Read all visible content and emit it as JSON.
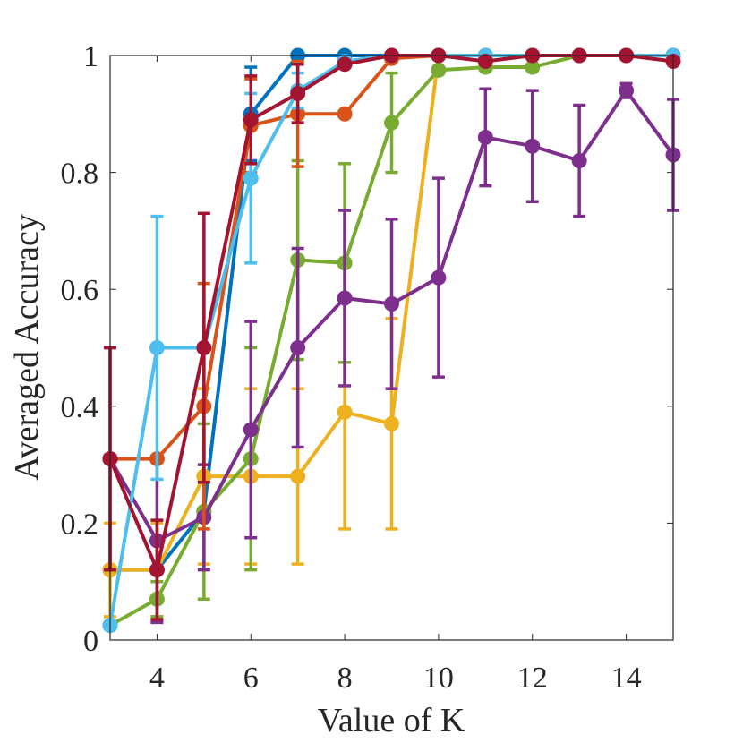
{
  "chart_data": {
    "type": "line",
    "title": "",
    "xlabel": "Value of K",
    "ylabel": "Averaged Accuracy",
    "xlim": [
      3,
      15
    ],
    "ylim": [
      0,
      1
    ],
    "x": [
      3,
      4,
      5,
      6,
      7,
      8,
      9,
      10,
      11,
      12,
      13,
      14,
      15
    ],
    "xticks": [
      4,
      6,
      8,
      10,
      12,
      14
    ],
    "yticks": [
      0,
      0.2,
      0.4,
      0.6,
      0.8,
      1
    ],
    "ytick_labels": [
      "0",
      "0.2",
      "0.4",
      "0.6",
      "0.8",
      "1"
    ],
    "grid": false,
    "legend": false,
    "series": [
      {
        "color": "#0072BD",
        "values": [
          0.12,
          0.12,
          0.22,
          0.9,
          1.0,
          1.0,
          1.0,
          1.0,
          1.0,
          1.0,
          1.0,
          1.0,
          1.0
        ],
        "error": [
          0,
          0,
          0,
          0.08,
          0,
          0,
          0,
          0,
          0,
          0,
          0,
          0,
          0
        ]
      },
      {
        "color": "#EDB120",
        "values": [
          0.12,
          0.12,
          0.28,
          0.28,
          0.28,
          0.39,
          0.37,
          1.0,
          1.0,
          1.0,
          1.0,
          1.0,
          1.0
        ],
        "error": [
          0.08,
          0.08,
          0.15,
          0.15,
          0.15,
          0.2,
          0.18,
          0,
          0,
          0,
          0,
          0,
          0
        ]
      },
      {
        "color": "#77AC30",
        "values": [
          0.025,
          0.07,
          0.22,
          0.31,
          0.65,
          0.645,
          0.885,
          0.975,
          0.98,
          0.98,
          1.0,
          1.0,
          1.0
        ],
        "error": [
          0,
          0.03,
          0.15,
          0.19,
          0.17,
          0.17,
          0.085,
          0,
          0,
          0,
          0,
          0,
          0
        ]
      },
      {
        "color": "#7E2F8E",
        "values": [
          0.31,
          0.17,
          0.21,
          0.36,
          0.5,
          0.585,
          0.575,
          0.62,
          0.86,
          0.845,
          0.82,
          0.94,
          0.83
        ],
        "error": [
          0.19,
          0.14,
          0.09,
          0.185,
          0.17,
          0.15,
          0.145,
          0.17,
          0.083,
          0.095,
          0.095,
          0.012,
          0.095
        ]
      },
      {
        "color": "#D95319",
        "values": [
          0.31,
          0.31,
          0.4,
          0.88,
          0.9,
          0.9,
          0.995,
          1.0,
          1.0,
          1.0,
          1.0,
          1.0,
          1.0
        ],
        "error": [
          0,
          0,
          0.21,
          0.08,
          0.09,
          0,
          0,
          0,
          0,
          0,
          0,
          0,
          0
        ]
      },
      {
        "color": "#4DBEEE",
        "values": [
          0.025,
          0.5,
          0.5,
          0.79,
          0.94,
          0.99,
          1.0,
          1.0,
          1.0,
          1.0,
          1.0,
          1.0,
          1.0
        ],
        "error": [
          0,
          0.225,
          0,
          0.145,
          0.03,
          0,
          0,
          0,
          0,
          0,
          0,
          0,
          0
        ]
      },
      {
        "color": "#A2142F",
        "values": [
          0.31,
          0.12,
          0.5,
          0.89,
          0.935,
          0.985,
          1.0,
          1.0,
          0.99,
          1.0,
          1.0,
          1.0,
          0.99
        ],
        "error": [
          0.19,
          0.085,
          0.23,
          0.075,
          0.05,
          0,
          0,
          0,
          0,
          0,
          0,
          0,
          0
        ]
      }
    ]
  }
}
